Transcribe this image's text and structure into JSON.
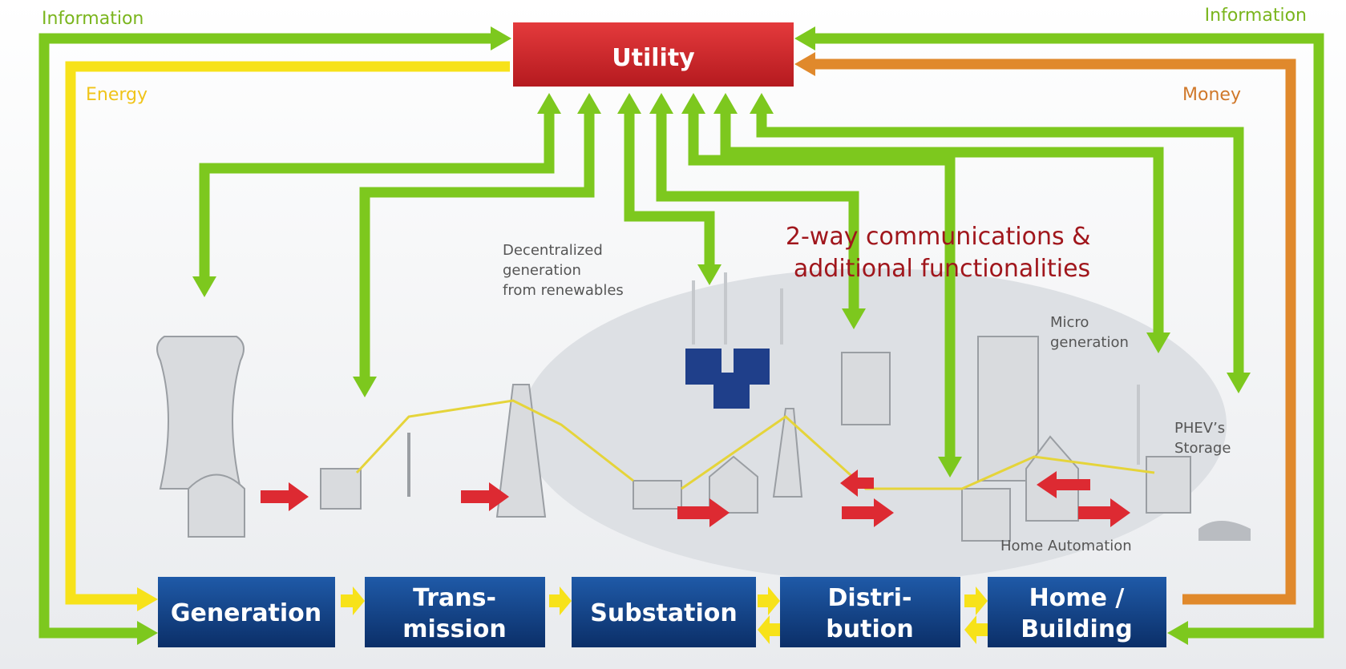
{
  "header": {
    "utility": "Utility"
  },
  "flows": {
    "information_left": "Information",
    "information_right": "Information",
    "energy": "Energy",
    "money": "Money"
  },
  "annotations": {
    "communications": [
      "2-way communications &",
      "additional functionalities"
    ],
    "renewables": [
      "Decentralized",
      "generation",
      "from renewables"
    ],
    "micro": [
      "Micro",
      "generation"
    ],
    "phev": [
      "PHEV’s",
      "Storage"
    ],
    "home_automation": "Home Automation"
  },
  "stages": [
    {
      "lines": [
        "Generation"
      ]
    },
    {
      "lines": [
        "Trans-",
        "mission"
      ]
    },
    {
      "lines": [
        "Substation"
      ]
    },
    {
      "lines": [
        "Distri-",
        "bution"
      ]
    },
    {
      "lines": [
        "Home /",
        "Building"
      ]
    }
  ]
}
